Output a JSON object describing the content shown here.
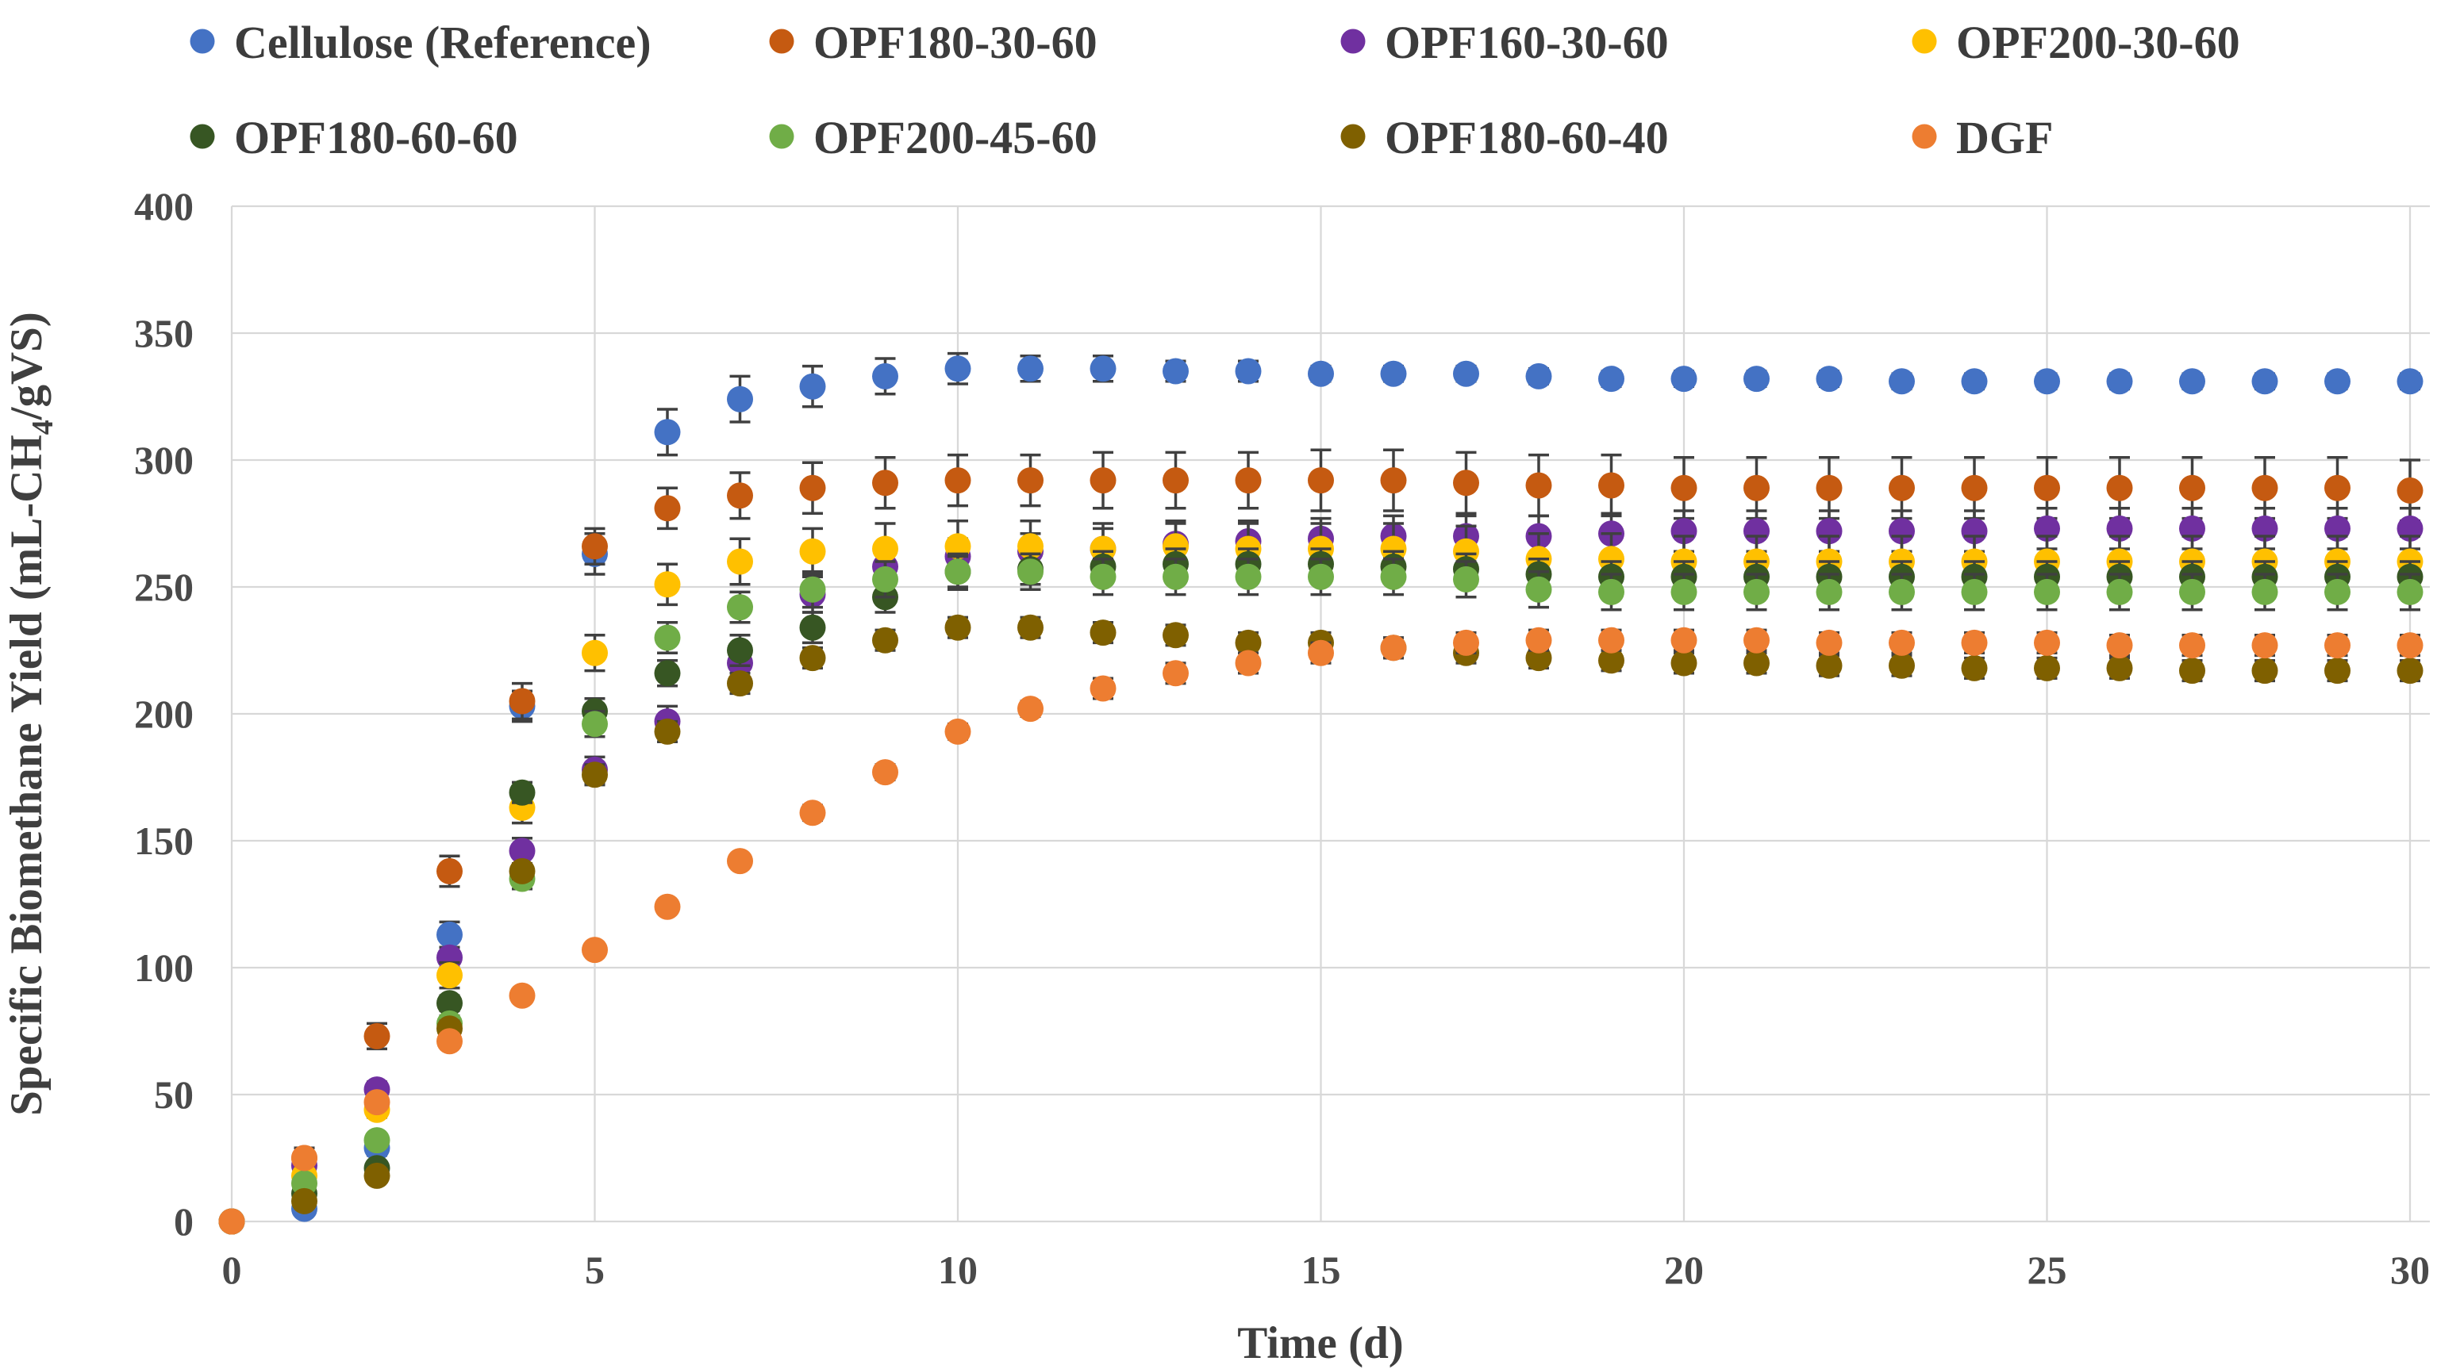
{
  "chart_data": {
    "type": "scatter",
    "title": "",
    "xlabel": "Time (d)",
    "ylabel": "Specific Biomethane Yield (mL-CH4/gVS)",
    "ylabel_parts": [
      "Specific Biomethane Yield (mL-CH",
      "4",
      "/gVS)"
    ],
    "x": [
      0,
      1,
      2,
      3,
      4,
      5,
      6,
      7,
      8,
      9,
      10,
      11,
      12,
      13,
      14,
      15,
      16,
      17,
      18,
      19,
      20,
      21,
      22,
      23,
      24,
      25,
      26,
      27,
      28,
      29,
      30
    ],
    "xlim": [
      0,
      30
    ],
    "ylim": [
      0,
      400
    ],
    "xticks": [
      0,
      5,
      10,
      15,
      20,
      25,
      30
    ],
    "yticks": [
      0,
      50,
      100,
      150,
      200,
      250,
      300,
      350,
      400
    ],
    "grid": true,
    "legend_position": "top",
    "marker": "circle",
    "error_bars": true,
    "series": [
      {
        "name": "Cellulose (Reference)",
        "color": "#4472C4",
        "values": [
          0,
          5,
          29,
          113,
          203,
          263,
          311,
          324,
          329,
          333,
          336,
          336,
          336,
          335,
          335,
          334,
          334,
          334,
          333,
          332,
          332,
          332,
          332,
          331,
          331,
          331,
          331,
          331,
          331,
          331,
          331
        ],
        "err": [
          0,
          2,
          3,
          5,
          6,
          8,
          9,
          9,
          8,
          7,
          6,
          5,
          5,
          4,
          4,
          3,
          3,
          3,
          3,
          3,
          3,
          3,
          3,
          3,
          3,
          3,
          3,
          3,
          3,
          3,
          3
        ]
      },
      {
        "name": "OPF180-30-60",
        "color": "#C55A11",
        "values": [
          0,
          25,
          73,
          138,
          205,
          266,
          281,
          286,
          289,
          291,
          292,
          292,
          292,
          292,
          292,
          292,
          292,
          291,
          290,
          290,
          289,
          289,
          289,
          289,
          289,
          289,
          289,
          289,
          289,
          289,
          288
        ],
        "err": [
          0,
          4,
          5,
          6,
          7,
          7,
          8,
          9,
          10,
          10,
          10,
          10,
          11,
          11,
          11,
          12,
          12,
          12,
          12,
          12,
          12,
          12,
          12,
          12,
          12,
          12,
          12,
          12,
          12,
          12,
          12
        ]
      },
      {
        "name": "OPF160-30-60",
        "color": "#7030A0",
        "values": [
          0,
          22,
          52,
          104,
          146,
          178,
          197,
          220,
          247,
          258,
          262,
          264,
          265,
          267,
          268,
          269,
          270,
          270,
          270,
          271,
          272,
          272,
          272,
          272,
          272,
          273,
          273,
          273,
          273,
          273,
          273
        ],
        "err": [
          0,
          2,
          3,
          4,
          5,
          5,
          6,
          6,
          7,
          7,
          7,
          7,
          8,
          8,
          8,
          8,
          8,
          8,
          8,
          8,
          8,
          8,
          8,
          8,
          8,
          8,
          8,
          8,
          8,
          8,
          8
        ]
      },
      {
        "name": "OPF200-30-60",
        "color": "#FFC000",
        "values": [
          0,
          18,
          44,
          97,
          163,
          224,
          251,
          260,
          264,
          265,
          266,
          266,
          265,
          266,
          265,
          265,
          265,
          264,
          261,
          261,
          260,
          260,
          260,
          260,
          260,
          260,
          260,
          260,
          260,
          260,
          260
        ],
        "err": [
          0,
          2,
          3,
          5,
          6,
          7,
          8,
          9,
          9,
          10,
          10,
          10,
          10,
          10,
          10,
          10,
          10,
          10,
          10,
          10,
          10,
          10,
          10,
          10,
          10,
          10,
          10,
          10,
          10,
          10,
          10
        ]
      },
      {
        "name": "OPF180-60-60",
        "color": "#375623",
        "values": [
          0,
          11,
          21,
          86,
          169,
          201,
          216,
          225,
          234,
          246,
          256,
          257,
          258,
          259,
          259,
          259,
          258,
          257,
          255,
          254,
          254,
          254,
          254,
          254,
          254,
          254,
          254,
          254,
          254,
          254,
          254
        ],
        "err": [
          0,
          1,
          2,
          3,
          4,
          5,
          5,
          6,
          6,
          6,
          6,
          6,
          6,
          6,
          6,
          6,
          6,
          6,
          6,
          6,
          6,
          6,
          6,
          6,
          6,
          6,
          6,
          6,
          6,
          6,
          6
        ]
      },
      {
        "name": "OPF200-45-60",
        "color": "#70AD47",
        "values": [
          0,
          15,
          32,
          78,
          135,
          196,
          230,
          242,
          249,
          253,
          256,
          256,
          254,
          254,
          254,
          254,
          254,
          253,
          249,
          248,
          248,
          248,
          248,
          248,
          248,
          248,
          248,
          248,
          248,
          248,
          248
        ],
        "err": [
          0,
          1,
          2,
          3,
          4,
          5,
          6,
          6,
          7,
          7,
          7,
          7,
          7,
          7,
          7,
          7,
          7,
          7,
          7,
          7,
          7,
          7,
          7,
          7,
          7,
          7,
          7,
          7,
          7,
          7,
          7
        ]
      },
      {
        "name": "OPF180-60-40",
        "color": "#7F6000",
        "values": [
          0,
          8,
          18,
          76,
          138,
          176,
          193,
          212,
          222,
          229,
          234,
          234,
          232,
          231,
          228,
          228,
          226,
          224,
          222,
          221,
          220,
          220,
          219,
          219,
          218,
          218,
          218,
          217,
          217,
          217,
          217
        ],
        "err": [
          0,
          1,
          2,
          3,
          3,
          4,
          4,
          4,
          4,
          4,
          4,
          4,
          4,
          4,
          4,
          4,
          4,
          4,
          4,
          4,
          4,
          4,
          4,
          4,
          4,
          4,
          4,
          4,
          4,
          4,
          4
        ]
      },
      {
        "name": "DGF",
        "color": "#ED7D31",
        "values": [
          0,
          25,
          47,
          71,
          89,
          107,
          124,
          142,
          161,
          177,
          193,
          202,
          210,
          216,
          220,
          224,
          226,
          228,
          229,
          229,
          229,
          229,
          228,
          228,
          228,
          228,
          227,
          227,
          227,
          227,
          227
        ],
        "err": [
          0,
          1,
          1,
          2,
          2,
          2,
          2,
          2,
          3,
          3,
          3,
          3,
          4,
          4,
          4,
          4,
          4,
          4,
          4,
          4,
          4,
          4,
          4,
          4,
          4,
          4,
          4,
          4,
          4,
          4,
          4
        ]
      }
    ],
    "styles": {
      "grid_color": "#D8D8D8",
      "error_bar_color": "#404040",
      "axis_text_color": "#4a4a4a",
      "legend_text_color": "#3c3c3c",
      "background": "#FFFFFF"
    }
  }
}
